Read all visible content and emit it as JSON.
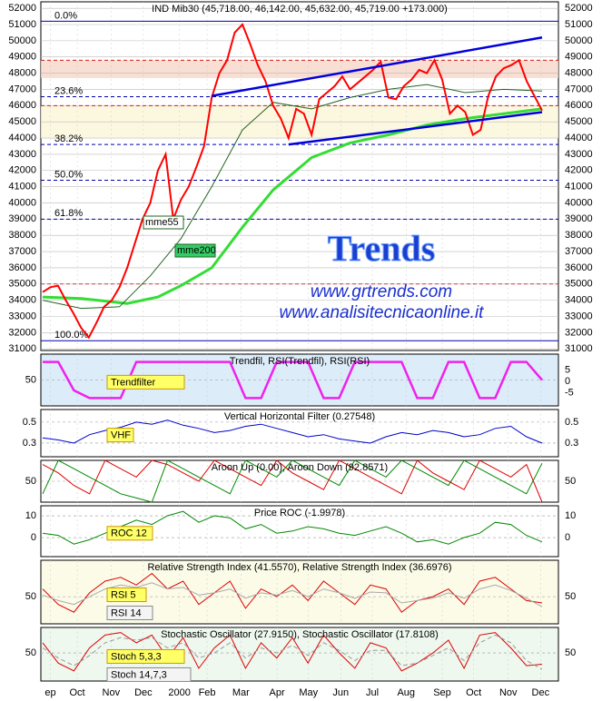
{
  "chart_data": [
    {
      "type": "line",
      "title": "IND Mib30 (45,718.00, 46,142.00, 45,632.00, 45,719.00 +173.000)",
      "annotations": [
        "Trends",
        "www.grtrends.com",
        "www.analisitecnicaonline.it"
      ],
      "xlim": [
        0,
        65
      ],
      "xticks": [
        {
          "value": 1,
          "label": "ep"
        },
        {
          "value": 4.5,
          "label": "Oct"
        },
        {
          "value": 8.9,
          "label": "Nov"
        },
        {
          "value": 13.1,
          "label": "Dec"
        },
        {
          "value": 17.8,
          "label": "2000"
        },
        {
          "value": 21.4,
          "label": "Feb"
        },
        {
          "value": 25.8,
          "label": "Mar"
        },
        {
          "value": 30.5,
          "label": "Apr"
        },
        {
          "value": 34.6,
          "label": "May"
        },
        {
          "value": 38.8,
          "label": "Jun"
        },
        {
          "value": 42.9,
          "label": "Jul"
        },
        {
          "value": 47.3,
          "label": "Aug"
        },
        {
          "value": 52,
          "label": "Sep"
        },
        {
          "value": 56.1,
          "label": "Oct"
        },
        {
          "value": 60.6,
          "label": "Nov"
        },
        {
          "value": 64.8,
          "label": "Dec"
        }
      ],
      "ylim": [
        30900,
        52400
      ],
      "yticks": [
        31000,
        32000,
        33000,
        34000,
        35000,
        36000,
        37000,
        38000,
        39000,
        40000,
        41000,
        42000,
        43000,
        44000,
        45000,
        46000,
        47000,
        48000,
        49000,
        50000,
        51000,
        52000
      ],
      "fib_levels": [
        {
          "value": 51200,
          "label": "0.0%"
        },
        {
          "value": 46550,
          "label": "23.6%"
        },
        {
          "value": 43600,
          "label": "38.2%"
        },
        {
          "value": 41400,
          "label": "50.0%"
        },
        {
          "value": 39000,
          "label": "61.8%"
        },
        {
          "value": 31500,
          "label": "100.0%"
        }
      ],
      "bands": [
        [
          47700,
          48800
        ],
        [
          44000,
          46000
        ]
      ],
      "reference_lines": [
        48800,
        46000,
        35000
      ],
      "trendlines": [
        {
          "x": [
            22,
            65
          ],
          "values": [
            46600,
            50200
          ]
        },
        {
          "x": [
            32,
            65
          ],
          "values": [
            43600,
            45600
          ]
        }
      ],
      "series": [
        {
          "color": "#ff0000",
          "values": [
            34500,
            34800,
            34900,
            34000,
            33200,
            32300,
            31700,
            32600,
            33600,
            34000,
            34800,
            36000,
            37500,
            39000,
            40000,
            42000,
            43000,
            39000,
            40200,
            41000,
            42200,
            43500,
            46500,
            48000,
            48800,
            50500,
            51000,
            49800,
            48500,
            47500,
            46000,
            45200,
            44000,
            45800,
            45500,
            44200,
            46400,
            46800,
            47200,
            47800,
            47000,
            47400,
            47800,
            48200,
            48700,
            46500,
            46400,
            47200,
            47600,
            48200,
            48000,
            48800,
            47600,
            45500,
            46000,
            45600,
            44200,
            44500,
            46600,
            47800,
            48300,
            48500,
            48800,
            47500,
            46600,
            45700
          ]
        },
        {
          "name": "mme200",
          "color": "#33dd33",
          "x": [
            0,
            5,
            11,
            15,
            18,
            22,
            26,
            30,
            35,
            40,
            45,
            50,
            55,
            60,
            65
          ],
          "values": [
            34200,
            34100,
            33800,
            34200,
            34900,
            36000,
            38500,
            40800,
            42800,
            43700,
            44200,
            44800,
            45200,
            45500,
            45800
          ]
        },
        {
          "name": "mme55",
          "color": "#226622",
          "x": [
            0,
            5,
            10,
            14,
            18,
            22,
            26,
            30,
            35,
            40,
            45,
            50,
            55,
            60,
            65
          ],
          "values": [
            34000,
            33500,
            33600,
            35500,
            37800,
            41000,
            44500,
            46200,
            45800,
            46500,
            47000,
            47300,
            46800,
            47000,
            46900
          ]
        }
      ]
    },
    {
      "type": "line",
      "title": "Trendfil, RSI(Trendfil), RSI(RSI)",
      "xlim": [
        0,
        32
      ],
      "ylim": [
        0,
        100
      ],
      "yticks": [
        50
      ],
      "y2lim": [
        -10.8,
        12
      ],
      "y2ticks": [
        5,
        0,
        -5
      ],
      "series": [
        {
          "name": "Trendfilter",
          "color": "#ee22ee",
          "values": [
            85,
            85,
            30,
            15,
            15,
            15,
            85,
            85,
            85,
            85,
            85,
            85,
            85,
            15,
            15,
            85,
            85,
            85,
            15,
            15,
            85,
            85,
            85,
            85,
            15,
            15,
            85,
            85,
            15,
            15,
            85,
            85,
            50
          ]
        }
      ]
    },
    {
      "type": "line",
      "title": "Vertical Horizontal Filter (0.27548)",
      "xlim": [
        0,
        32
      ],
      "ylim": [
        0.17,
        0.62
      ],
      "yticks": [
        0.5,
        0.3
      ],
      "series": [
        {
          "name": "VHF",
          "color": "#0000cc",
          "values": [
            0.35,
            0.33,
            0.3,
            0.38,
            0.42,
            0.45,
            0.5,
            0.48,
            0.52,
            0.47,
            0.44,
            0.4,
            0.42,
            0.46,
            0.48,
            0.44,
            0.4,
            0.36,
            0.38,
            0.34,
            0.32,
            0.3,
            0.36,
            0.4,
            0.38,
            0.42,
            0.4,
            0.36,
            0.38,
            0.44,
            0.46,
            0.36,
            0.3
          ]
        }
      ]
    },
    {
      "type": "line",
      "title": "Aroon Up (0.00), Aroon Down (92.8571)",
      "xlim": [
        0,
        32
      ],
      "ylim": [
        0,
        100
      ],
      "yticks": [
        50
      ],
      "series": [
        {
          "color": "#dd0000",
          "values": [
            90,
            70,
            40,
            20,
            100,
            80,
            60,
            100,
            90,
            70,
            50,
            100,
            80,
            60,
            40,
            100,
            70,
            50,
            30,
            100,
            80,
            60,
            40,
            20,
            100,
            70,
            50,
            30,
            100,
            80,
            60,
            90,
            0
          ]
        },
        {
          "color": "#008800",
          "values": [
            20,
            100,
            80,
            60,
            40,
            20,
            10,
            0,
            100,
            80,
            60,
            40,
            20,
            100,
            80,
            60,
            100,
            80,
            60,
            40,
            100,
            80,
            60,
            100,
            80,
            60,
            40,
            100,
            80,
            60,
            40,
            20,
            93
          ]
        }
      ]
    },
    {
      "type": "line",
      "title": "Price ROC (-1.9978)",
      "xlim": [
        0,
        32
      ],
      "ylim": [
        -8.75,
        14.6
      ],
      "yticks": [
        10,
        0
      ],
      "series": [
        {
          "name": "ROC 12",
          "color": "#008800",
          "values": [
            2,
            1,
            -3,
            -1,
            2,
            5,
            8,
            6,
            10,
            12,
            7,
            10,
            9,
            4,
            6,
            2,
            3,
            5,
            4,
            2,
            1,
            3,
            5,
            2,
            -2,
            -1,
            -3,
            0,
            2,
            7,
            6,
            1,
            -2
          ]
        }
      ]
    },
    {
      "type": "line",
      "title": "Relative Strength Index (41.5570), Relative Strength Index (36.6976)",
      "xlim": [
        0,
        32
      ],
      "ylim": [
        15,
        97
      ],
      "yticks": [
        50
      ],
      "series": [
        {
          "name": "RSI 5",
          "color": "#dd0000",
          "values": [
            60,
            40,
            30,
            55,
            70,
            75,
            65,
            80,
            60,
            70,
            40,
            55,
            70,
            35,
            60,
            50,
            65,
            45,
            70,
            55,
            40,
            65,
            60,
            30,
            45,
            50,
            60,
            40,
            70,
            75,
            60,
            45,
            42
          ]
        },
        {
          "name": "RSI 14",
          "color": "#aaaaaa",
          "values": [
            52,
            45,
            40,
            50,
            60,
            65,
            62,
            68,
            60,
            62,
            52,
            55,
            60,
            48,
            55,
            52,
            58,
            50,
            60,
            55,
            48,
            56,
            55,
            42,
            45,
            48,
            55,
            48,
            60,
            65,
            58,
            48,
            37
          ]
        }
      ]
    },
    {
      "type": "line",
      "title": "Stochastic Oscillator (27.9150), Stochastic Oscillator (17.8108)",
      "xlim": [
        0,
        32
      ],
      "ylim": [
        -5,
        100
      ],
      "yticks": [
        50
      ],
      "series": [
        {
          "name": "Stoch 5,3,3",
          "color": "#dd0000",
          "values": [
            70,
            30,
            15,
            60,
            85,
            90,
            70,
            85,
            40,
            80,
            20,
            60,
            85,
            20,
            70,
            40,
            80,
            30,
            85,
            50,
            20,
            70,
            60,
            15,
            30,
            50,
            75,
            20,
            85,
            90,
            60,
            25,
            28
          ]
        },
        {
          "name": "Stoch 14,7,3",
          "color": "#999999",
          "values": [
            60,
            40,
            25,
            45,
            70,
            80,
            75,
            80,
            60,
            70,
            40,
            50,
            70,
            40,
            60,
            50,
            65,
            45,
            70,
            55,
            35,
            55,
            55,
            25,
            30,
            45,
            60,
            35,
            70,
            85,
            70,
            35,
            18
          ]
        }
      ]
    }
  ]
}
